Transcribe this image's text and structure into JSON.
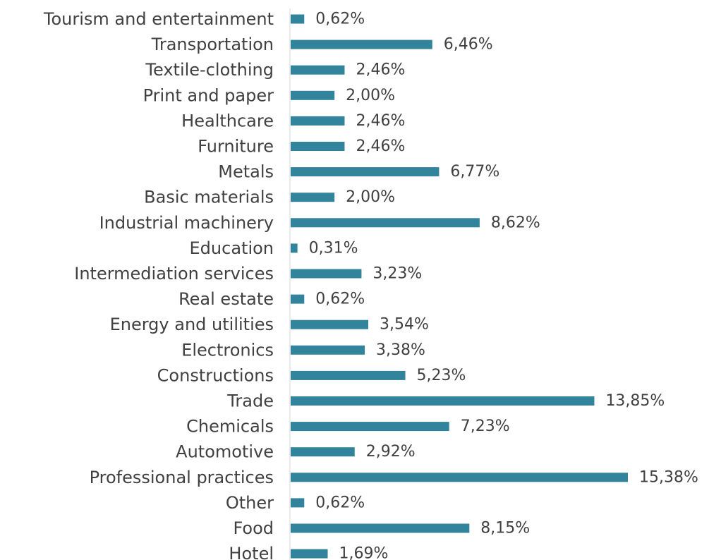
{
  "chart_data": {
    "type": "bar",
    "orientation": "horizontal",
    "categories": [
      "Tourism and entertainment",
      "Transportation",
      "Textile-clothing",
      "Print and paper",
      "Healthcare",
      "Furniture",
      "Metals",
      "Basic materials",
      "Industrial machinery",
      "Education",
      "Intermediation services",
      "Real estate",
      "Energy and utilities",
      "Electronics",
      "Constructions",
      "Trade",
      "Chemicals",
      "Automotive",
      "Professional practices",
      "Other",
      "Food",
      "Hotel"
    ],
    "values": [
      0.62,
      6.46,
      2.46,
      2.0,
      2.46,
      2.46,
      6.77,
      2.0,
      8.62,
      0.31,
      3.23,
      0.62,
      3.54,
      3.38,
      5.23,
      13.85,
      7.23,
      2.92,
      15.38,
      0.62,
      8.15,
      1.69
    ],
    "value_labels": [
      "0,62%",
      "6,46%",
      "2,46%",
      "2,00%",
      "2,46%",
      "2,46%",
      "6,77%",
      "2,00%",
      "8,62%",
      "0,31%",
      "3,23%",
      "0,62%",
      "3,54%",
      "3,38%",
      "5,23%",
      "13,85%",
      "7,23%",
      "2,92%",
      "15,38%",
      "0,62%",
      "8,15%",
      "1,69%"
    ],
    "title": "",
    "xlabel": "",
    "ylabel": "",
    "xlim": [
      0,
      15.38
    ],
    "grid": false,
    "legend": "none",
    "bar_color": "#31849B",
    "axis_color": "#D9D9D9",
    "text_color": "#404040"
  }
}
